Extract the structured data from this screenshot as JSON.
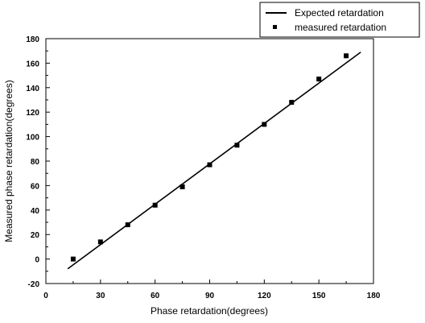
{
  "chart_data": {
    "type": "scatter",
    "xlabel": "Phase retardation(degrees)",
    "ylabel": "Measured phase retardation(degrees)",
    "xlim": [
      0,
      180
    ],
    "ylim": [
      -20,
      180
    ],
    "xticks": [
      0,
      30,
      60,
      90,
      120,
      150,
      180
    ],
    "yticks": [
      -20,
      0,
      20,
      40,
      60,
      80,
      100,
      120,
      140,
      160,
      180
    ],
    "grid": false,
    "legend_position": "top-right",
    "series": [
      {
        "name": "Expected retardation",
        "kind": "line",
        "color": "#000000",
        "x": [
          12,
          173
        ],
        "y": [
          -8,
          169
        ]
      },
      {
        "name": "measured retardation",
        "kind": "scatter",
        "marker": "square",
        "color": "#000000",
        "x": [
          15,
          30,
          45,
          60,
          75,
          90,
          105,
          120,
          135,
          150,
          165
        ],
        "y": [
          0,
          14,
          28,
          44,
          59,
          77,
          93,
          110,
          128,
          147,
          166
        ]
      }
    ]
  }
}
